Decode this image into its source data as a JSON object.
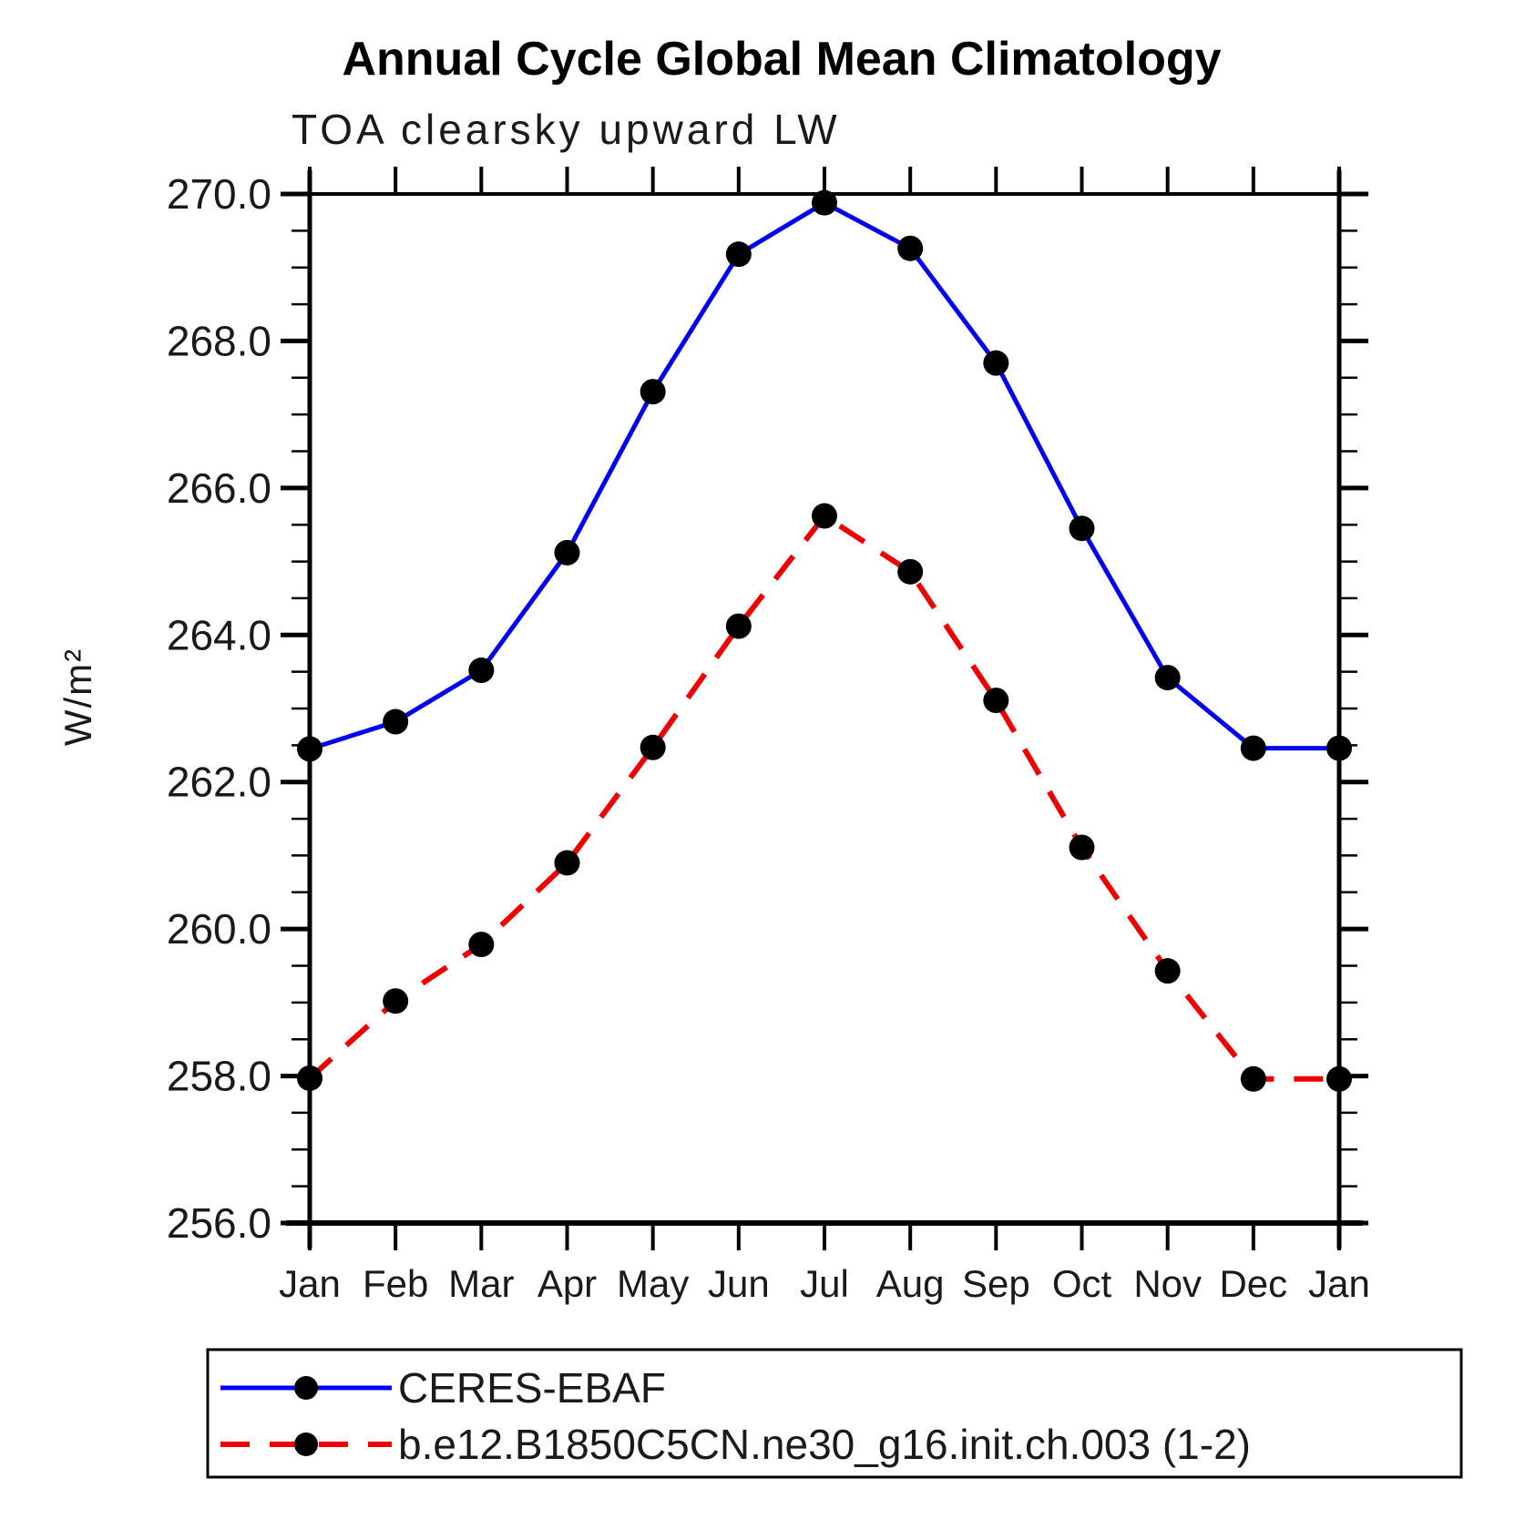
{
  "title": "Annual Cycle Global Mean Climatology",
  "subtitle": "TOA clearsky upward LW",
  "y_axis": {
    "label": "W/m²",
    "major_tick_labels": [
      "256.0",
      "258.0",
      "260.0",
      "262.0",
      "264.0",
      "266.0",
      "268.0",
      "270.0"
    ],
    "major_step": 2.0,
    "minor_step": 0.5
  },
  "x_axis": {
    "tick_labels": [
      "Jan",
      "Feb",
      "Mar",
      "Apr",
      "May",
      "Jun",
      "Jul",
      "Aug",
      "Sep",
      "Oct",
      "Nov",
      "Dec",
      "Jan"
    ]
  },
  "legend": {
    "entries": [
      {
        "label": "CERES-EBAF"
      },
      {
        "label": "b.e12.B1850C5CN.ne30_g16.init.ch.003 (1-2)"
      }
    ]
  },
  "chart_data": {
    "type": "line",
    "title": "Annual Cycle Global Mean Climatology",
    "subtitle": "TOA clearsky upward LW",
    "xlabel": "",
    "ylabel": "W/m²",
    "categories": [
      "Jan",
      "Feb",
      "Mar",
      "Apr",
      "May",
      "Jun",
      "Jul",
      "Aug",
      "Sep",
      "Oct",
      "Nov",
      "Dec",
      "Jan"
    ],
    "series": [
      {
        "name": "CERES-EBAF",
        "color": "#0000ee",
        "line_style": "solid",
        "marker": "circle",
        "marker_color": "#000000",
        "values": [
          262.45,
          262.82,
          263.52,
          265.12,
          267.31,
          269.18,
          269.88,
          269.26,
          267.7,
          265.45,
          263.42,
          262.46,
          262.46
        ]
      },
      {
        "name": "b.e12.B1850C5CN.ne30_g16.init.ch.003 (1-2)",
        "color": "#ee0000",
        "line_style": "dashed",
        "marker": "circle",
        "marker_color": "#000000",
        "values": [
          257.97,
          259.02,
          259.79,
          260.9,
          262.47,
          264.12,
          265.62,
          264.86,
          263.11,
          261.11,
          259.43,
          257.96,
          257.96
        ]
      }
    ],
    "ylim": [
      256.0,
      270.0
    ],
    "y_major_step": 2.0,
    "y_minor_step": 0.5,
    "grid": "off",
    "legend_position": "bottom"
  }
}
